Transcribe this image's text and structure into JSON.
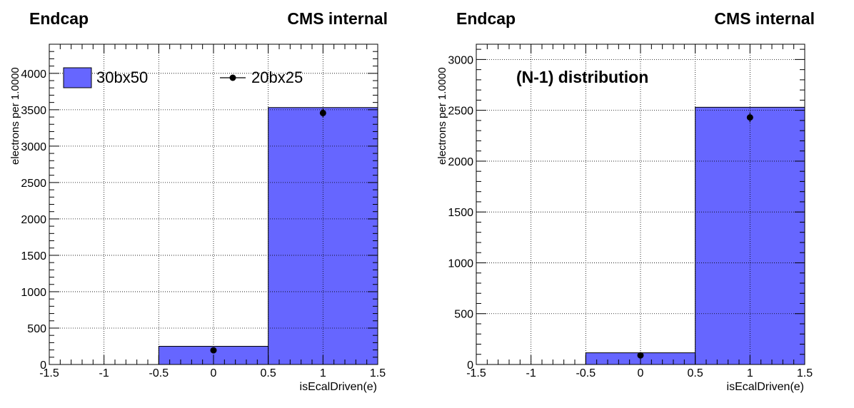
{
  "chart_data": [
    {
      "type": "bar",
      "title_left": "Endcap",
      "title_right": "CMS internal",
      "xlabel": "isEcalDriven(e)",
      "ylabel": "electrons per 1.0000",
      "xlim": [
        -1.5,
        1.5
      ],
      "ylim": [
        0,
        4400
      ],
      "xticks": [
        -1.5,
        -1,
        -0.5,
        0,
        0.5,
        1,
        1.5
      ],
      "xtick_labels": [
        "-1.5",
        "-1",
        "-0.5",
        "0",
        "0.5",
        "1",
        "1.5"
      ],
      "yticks": [
        0,
        500,
        1000,
        1500,
        2000,
        2500,
        3000,
        3500,
        4000
      ],
      "ytick_labels": [
        "0",
        "500",
        "1000",
        "1500",
        "2000",
        "2500",
        "3000",
        "3500",
        "4000"
      ],
      "grid": true,
      "annotation": "",
      "legend": [
        {
          "label": "30bx50",
          "style": "fill"
        },
        {
          "label": "20bx25",
          "style": "marker"
        }
      ],
      "series": [
        {
          "name": "30bx50",
          "type": "histogram",
          "color": "#6666ff",
          "bins": [
            {
              "low": -0.5,
              "high": 0.5,
              "value": 250
            },
            {
              "low": 0.5,
              "high": 1.5,
              "value": 3530
            }
          ]
        },
        {
          "name": "20bx25",
          "type": "points",
          "color": "#000000",
          "points": [
            {
              "x": 0,
              "y": 195,
              "err": 14
            },
            {
              "x": 1,
              "y": 3455,
              "err": 59
            }
          ]
        }
      ]
    },
    {
      "type": "bar",
      "title_left": "Endcap",
      "title_right": "CMS internal",
      "xlabel": "isEcalDriven(e)",
      "ylabel": "electrons per 1.0000",
      "xlim": [
        -1.5,
        1.5
      ],
      "ylim": [
        0,
        3150
      ],
      "xticks": [
        -1.5,
        -1,
        -0.5,
        0,
        0.5,
        1,
        1.5
      ],
      "xtick_labels": [
        "-1.5",
        "-1",
        "-0.5",
        "0",
        "0.5",
        "1",
        "1.5"
      ],
      "yticks": [
        0,
        500,
        1000,
        1500,
        2000,
        2500,
        3000
      ],
      "ytick_labels": [
        "0",
        "500",
        "1000",
        "1500",
        "2000",
        "2500",
        "3000"
      ],
      "grid": true,
      "annotation": "(N-1) distribution",
      "legend": [],
      "series": [
        {
          "name": "30bx50",
          "type": "histogram",
          "color": "#6666ff",
          "bins": [
            {
              "low": -0.5,
              "high": 0.5,
              "value": 115
            },
            {
              "low": 0.5,
              "high": 1.5,
              "value": 2530
            }
          ]
        },
        {
          "name": "20bx25",
          "type": "points",
          "color": "#000000",
          "points": [
            {
              "x": 0,
              "y": 90,
              "err": 10
            },
            {
              "x": 1,
              "y": 2430,
              "err": 49
            }
          ]
        }
      ]
    }
  ]
}
